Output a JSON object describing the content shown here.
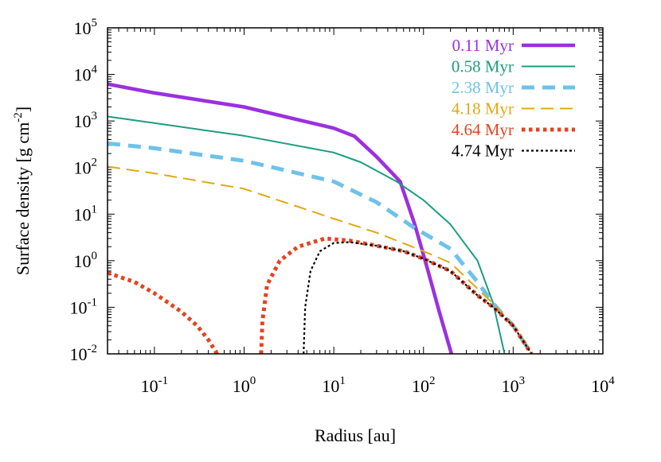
{
  "chart_data": {
    "type": "line",
    "title": "",
    "xlabel": "Radius [au]",
    "ylabel": "Surface density [g cm⁻²]",
    "xscale": "log",
    "yscale": "log",
    "xlim": [
      0.03,
      10000
    ],
    "ylim": [
      0.01,
      100000
    ],
    "grid": false,
    "legend_position": "top-right",
    "x_ticks": [
      {
        "value": 0.1,
        "base": "10",
        "exp": "-1"
      },
      {
        "value": 1,
        "base": "10",
        "exp": "0"
      },
      {
        "value": 10,
        "base": "10",
        "exp": "1"
      },
      {
        "value": 100,
        "base": "10",
        "exp": "2"
      },
      {
        "value": 1000,
        "base": "10",
        "exp": "3"
      },
      {
        "value": 10000,
        "base": "10",
        "exp": "4"
      }
    ],
    "y_ticks": [
      {
        "value": 0.01,
        "base": "10",
        "exp": "-2"
      },
      {
        "value": 0.1,
        "base": "10",
        "exp": "-1"
      },
      {
        "value": 1,
        "base": "10",
        "exp": "0"
      },
      {
        "value": 10,
        "base": "10",
        "exp": "1"
      },
      {
        "value": 100,
        "base": "10",
        "exp": "2"
      },
      {
        "value": 1000,
        "base": "10",
        "exp": "3"
      },
      {
        "value": 10000,
        "base": "10",
        "exp": "4"
      },
      {
        "value": 100000,
        "base": "10",
        "exp": "5"
      }
    ],
    "series": [
      {
        "name": "0.11 Myr",
        "color": "#9b30e0",
        "style": "solid-thick",
        "segments": [
          [
            [
              0.03,
              6200
            ],
            [
              0.1,
              4000
            ],
            [
              1,
              2000
            ],
            [
              10,
              700
            ],
            [
              17,
              470
            ],
            [
              30,
              170
            ],
            [
              55,
              50
            ],
            [
              80,
              6
            ],
            [
              110,
              0.7
            ],
            [
              150,
              0.08
            ],
            [
              205,
              0.01
            ]
          ]
        ]
      },
      {
        "name": "0.58 Myr",
        "color": "#1a9e80",
        "style": "solid-thin",
        "segments": [
          [
            [
              0.03,
              1250
            ],
            [
              0.1,
              900
            ],
            [
              1,
              480
            ],
            [
              10,
              210
            ],
            [
              20,
              130
            ],
            [
              50,
              50
            ],
            [
              100,
              20
            ],
            [
              200,
              6
            ],
            [
              400,
              1
            ],
            [
              600,
              0.12
            ],
            [
              800,
              0.01
            ]
          ]
        ]
      },
      {
        "name": "2.38 Myr",
        "color": "#6ec2ea",
        "style": "dashed-thick",
        "segments": [
          [
            [
              0.03,
              330
            ],
            [
              0.1,
              260
            ],
            [
              1,
              140
            ],
            [
              10,
              50
            ],
            [
              30,
              18
            ],
            [
              80,
              5
            ],
            [
              200,
              1.8
            ],
            [
              400,
              0.35
            ],
            [
              600,
              0.12
            ],
            [
              1000,
              0.04
            ],
            [
              1600,
              0.01
            ]
          ]
        ]
      },
      {
        "name": "4.18 Myr",
        "color": "#e0a912",
        "style": "dashed-thin",
        "segments": [
          [
            [
              0.03,
              105
            ],
            [
              0.1,
              75
            ],
            [
              1,
              35
            ],
            [
              10,
              8
            ],
            [
              30,
              4
            ],
            [
              100,
              1.6
            ],
            [
              200,
              0.9
            ],
            [
              400,
              0.25
            ],
            [
              600,
              0.12
            ],
            [
              1000,
              0.04
            ],
            [
              1600,
              0.01
            ]
          ]
        ]
      },
      {
        "name": "4.64 Myr",
        "color": "#e54320",
        "style": "dotted-thick",
        "segments": [
          [
            [
              0.03,
              0.55
            ],
            [
              0.06,
              0.35
            ],
            [
              0.1,
              0.2
            ],
            [
              0.2,
              0.08
            ],
            [
              0.3,
              0.04
            ],
            [
              0.4,
              0.02
            ],
            [
              0.5,
              0.01
            ]
          ],
          [
            [
              1.55,
              0.01
            ],
            [
              1.6,
              0.05
            ],
            [
              1.8,
              0.3
            ],
            [
              2.5,
              1.0
            ],
            [
              4,
              2.0
            ],
            [
              8,
              3.0
            ],
            [
              15,
              2.7
            ],
            [
              30,
              2.1
            ],
            [
              60,
              1.6
            ],
            [
              100,
              1.1
            ],
            [
              200,
              0.6
            ],
            [
              400,
              0.18
            ],
            [
              600,
              0.1
            ],
            [
              1000,
              0.04
            ],
            [
              1600,
              0.01
            ]
          ]
        ]
      },
      {
        "name": "4.74 Myr",
        "color": "#000000",
        "style": "dotted-thin",
        "segments": [
          [
            [
              4.6,
              0.01
            ],
            [
              4.8,
              0.1
            ],
            [
              5.5,
              0.6
            ],
            [
              7,
              1.6
            ],
            [
              10,
              2.4
            ],
            [
              15,
              2.5
            ],
            [
              30,
              2.1
            ],
            [
              60,
              1.6
            ],
            [
              100,
              1.1
            ],
            [
              200,
              0.6
            ],
            [
              400,
              0.18
            ],
            [
              600,
              0.1
            ],
            [
              1000,
              0.04
            ],
            [
              1600,
              0.01
            ]
          ]
        ]
      }
    ]
  }
}
